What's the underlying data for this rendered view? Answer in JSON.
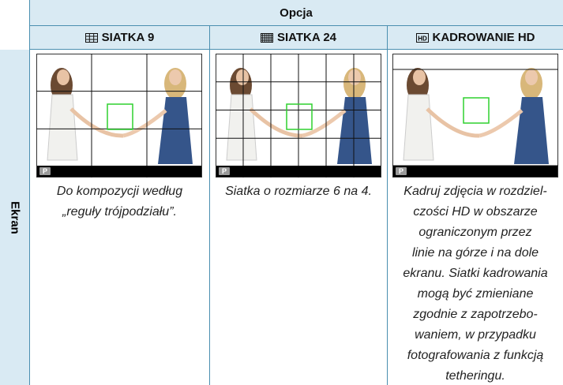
{
  "header": {
    "title": "Opcja",
    "columns": [
      {
        "label": "SIATKA 9"
      },
      {
        "label": "SIATKA 24"
      },
      {
        "label": "KADROWANIE HD",
        "icon_text": "HD"
      }
    ]
  },
  "row_label": "Ekran",
  "badge": "P",
  "cells": [
    {
      "description_lines": [
        "Do kompozycji według",
        "„reguły trójpodziału”."
      ]
    },
    {
      "description_lines": [
        "Siatka o rozmiarze 6 na 4."
      ]
    },
    {
      "description_lines": [
        "Kadruj zdjęcia w rozdziel-",
        "czości HD w obszarze",
        "ograniczonym przez",
        "linie na górze i na dole",
        "ekranu. Siatki kadrowania",
        "mogą być zmieniane",
        "zgodnie z zapotrzebo-",
        "waniem, w przypadku",
        "fotografowania z funkcją",
        "tetheringu."
      ]
    }
  ]
}
